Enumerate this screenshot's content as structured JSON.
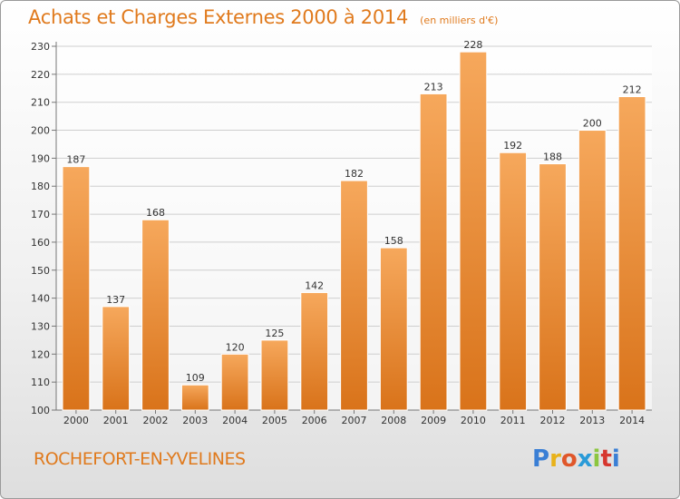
{
  "title": "Achats et Charges Externes 2000 à 2014",
  "subtitle": "(en milliers d'€)",
  "location": "ROCHEFORT-EN-YVELINES",
  "logo": {
    "letters": [
      "P",
      "r",
      "o",
      "x",
      "i",
      "t",
      "i"
    ],
    "colors": [
      "#3a7fd5",
      "#e8b21a",
      "#e0572a",
      "#2a9bd8",
      "#8cc63f",
      "#d6362e",
      "#3a7fd5"
    ]
  },
  "colors": {
    "accent": "#e07a1d",
    "bar_top": "#f6a85c",
    "bar_bottom": "#d9731a",
    "grid": "#cfcfcf",
    "axis_text": "#333333"
  },
  "chart_data": {
    "type": "bar",
    "categories": [
      "2000",
      "2001",
      "2002",
      "2003",
      "2004",
      "2005",
      "2006",
      "2007",
      "2008",
      "2009",
      "2010",
      "2011",
      "2012",
      "2013",
      "2014"
    ],
    "values": [
      187,
      137,
      168,
      109,
      120,
      125,
      142,
      182,
      158,
      213,
      228,
      192,
      188,
      200,
      212
    ],
    "yticks": [
      100,
      110,
      120,
      130,
      140,
      150,
      160,
      170,
      180,
      190,
      200,
      210,
      220,
      230
    ],
    "ylim": [
      100,
      230
    ],
    "grid": true,
    "data_labels": true
  }
}
